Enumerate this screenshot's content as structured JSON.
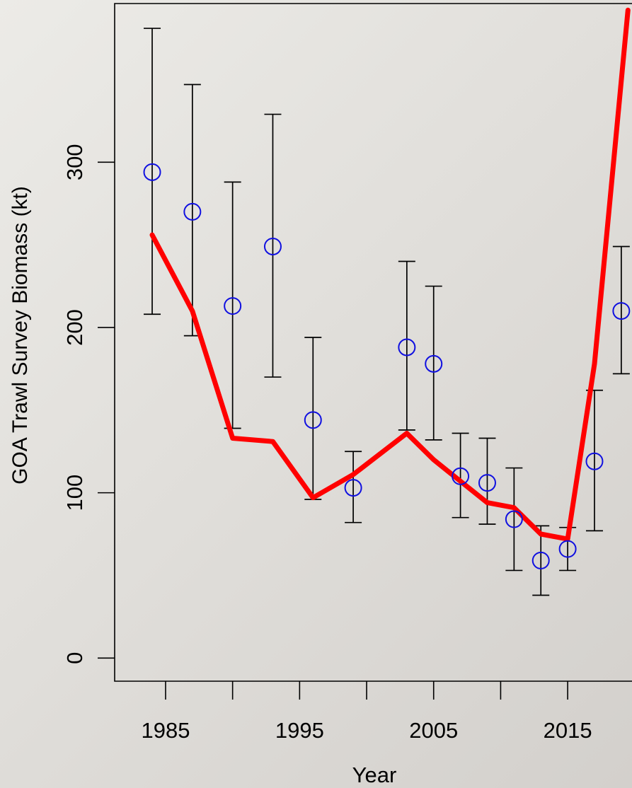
{
  "chart_data": {
    "type": "scatter",
    "title": "",
    "xlabel": "Year",
    "ylabel": "GOA Trawl Survey Biomass (kt)",
    "xlim": [
      1981.2,
      2019.8
    ],
    "ylim": [
      -14,
      396
    ],
    "x_ticks": [
      1985,
      1990,
      1995,
      2000,
      2005,
      2010,
      2015,
      2020
    ],
    "x_tick_labels": [
      "1985",
      "",
      "1995",
      "",
      "2005",
      "",
      "2015",
      ""
    ],
    "y_ticks": [
      0,
      100,
      200,
      300
    ],
    "y_tick_labels": [
      "0",
      "100",
      "200",
      "300"
    ],
    "grid": false,
    "legend": "none",
    "colors": {
      "observed": "#1010e0",
      "model": "#ff0000",
      "error_bar": "#000000",
      "axis": "#000000"
    },
    "series": [
      {
        "kind": "points_with_error_bars",
        "points": [
          {
            "x": 1984,
            "y": 294,
            "lo": 208,
            "hi": 381
          },
          {
            "x": 1987,
            "y": 270,
            "lo": 195,
            "hi": 347
          },
          {
            "x": 1990,
            "y": 213,
            "lo": 139,
            "hi": 288
          },
          {
            "x": 1993,
            "y": 249,
            "lo": 170,
            "hi": 329
          },
          {
            "x": 1996,
            "y": 144,
            "lo": 96,
            "hi": 194
          },
          {
            "x": 1999,
            "y": 103,
            "lo": 82,
            "hi": 125
          },
          {
            "x": 2003,
            "y": 188,
            "lo": 138,
            "hi": 240
          },
          {
            "x": 2005,
            "y": 178,
            "lo": 132,
            "hi": 225
          },
          {
            "x": 2007,
            "y": 110,
            "lo": 85,
            "hi": 136
          },
          {
            "x": 2009,
            "y": 106,
            "lo": 81,
            "hi": 133
          },
          {
            "x": 2011,
            "y": 84,
            "lo": 53,
            "hi": 115
          },
          {
            "x": 2013,
            "y": 59,
            "lo": 38,
            "hi": 80
          },
          {
            "x": 2015,
            "y": 66,
            "lo": 53,
            "hi": 79
          },
          {
            "x": 2017,
            "y": 119,
            "lo": 77,
            "hi": 162
          },
          {
            "x": 2019,
            "y": 210,
            "lo": 172,
            "hi": 249
          }
        ]
      },
      {
        "kind": "line",
        "x": [
          1984,
          1987,
          1990,
          1993,
          1996,
          1999,
          2003,
          2005,
          2007,
          2009,
          2011,
          2013,
          2015,
          2017,
          2019.5
        ],
        "y": [
          256,
          210,
          133,
          131,
          97,
          111,
          136,
          120,
          107,
          94,
          91,
          75,
          72,
          178,
          392
        ]
      }
    ]
  }
}
